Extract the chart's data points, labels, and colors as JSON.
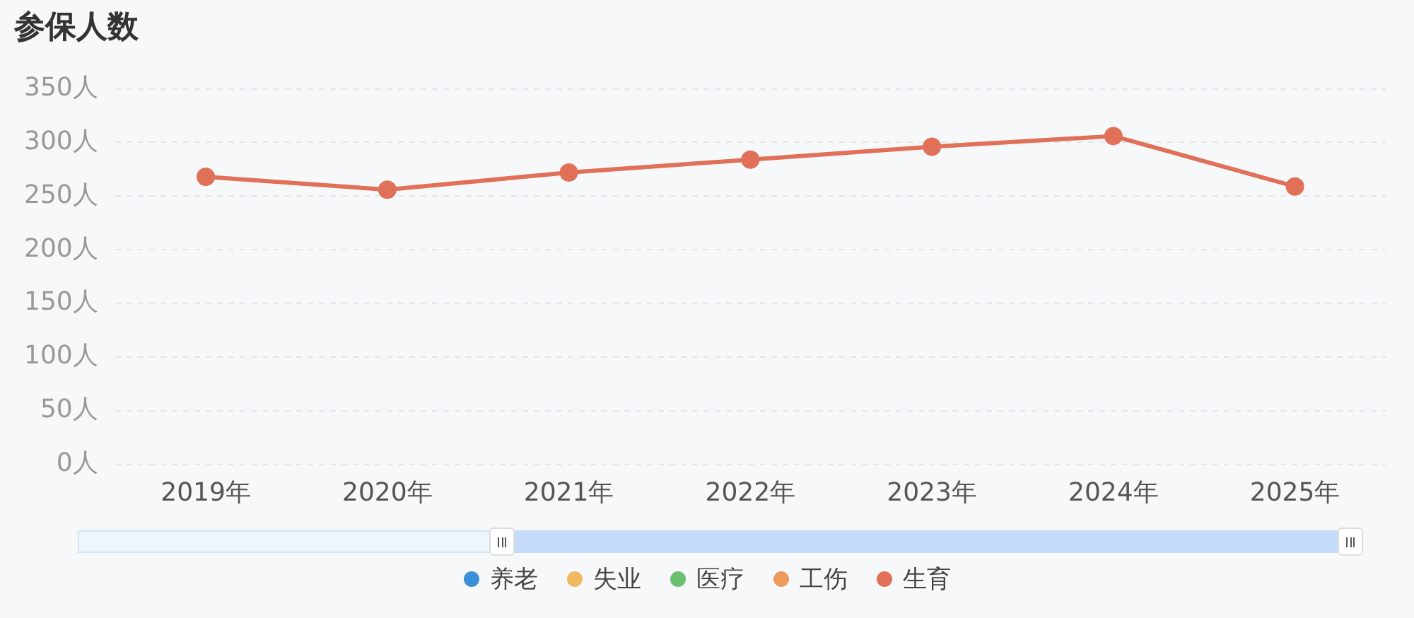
{
  "chart_data": {
    "type": "line",
    "title": "参保人数",
    "categories": [
      "2019年",
      "2020年",
      "2021年",
      "2022年",
      "2023年",
      "2024年",
      "2025年"
    ],
    "series": [
      {
        "name": "养老",
        "color": "#3a8fd9",
        "values": [
          null,
          null,
          null,
          null,
          null,
          null,
          null
        ]
      },
      {
        "name": "失业",
        "color": "#f0b860",
        "values": [
          null,
          null,
          null,
          null,
          null,
          null,
          null
        ]
      },
      {
        "name": "医疗",
        "color": "#6cc070",
        "values": [
          null,
          null,
          null,
          null,
          null,
          null,
          null
        ]
      },
      {
        "name": "工伤",
        "color": "#ee9a5c",
        "values": [
          null,
          null,
          null,
          null,
          null,
          null,
          null
        ]
      },
      {
        "name": "生育",
        "color": "#e07058",
        "values": [
          268,
          256,
          272,
          284,
          296,
          306,
          259
        ]
      }
    ],
    "ylim": [
      0,
      350
    ],
    "yticks": [
      {
        "value": 0,
        "label": "0人"
      },
      {
        "value": 50,
        "label": "50人"
      },
      {
        "value": 100,
        "label": "100人"
      },
      {
        "value": 150,
        "label": "150人"
      },
      {
        "value": 200,
        "label": "200人"
      },
      {
        "value": 250,
        "label": "250人"
      },
      {
        "value": 300,
        "label": "300人"
      },
      {
        "value": 350,
        "label": "350人"
      }
    ],
    "grid": "y",
    "legend": "bottom",
    "marker": "circle",
    "line_style": "solid"
  }
}
